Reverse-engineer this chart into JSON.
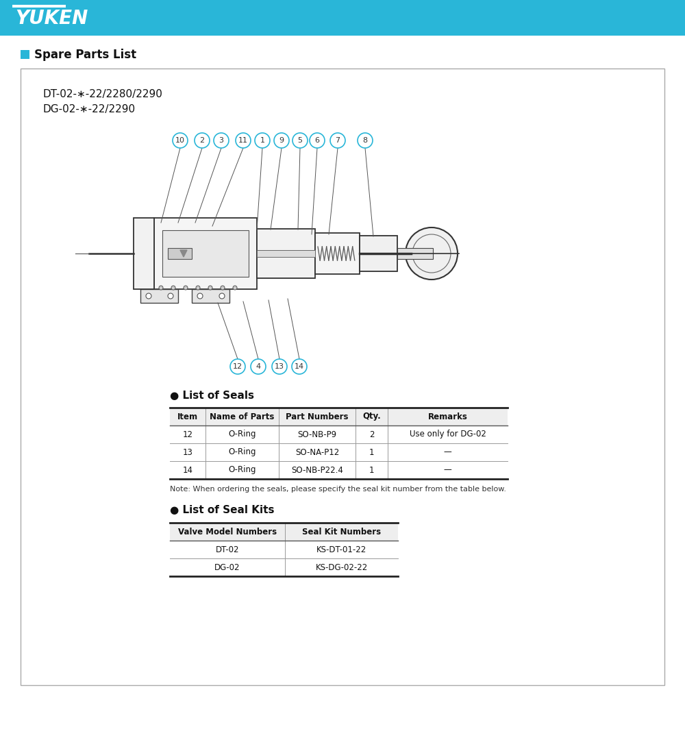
{
  "bg_color": "#ffffff",
  "header_color": "#29b6d8",
  "header_text": "YUKEN",
  "header_text_color": "#ffffff",
  "section_title": "Spare Parts List",
  "section_indicator_color": "#29b6d8",
  "model_lines": [
    "DT-02-∗-22/2280/2290",
    "DG-02-∗-22/2290"
  ],
  "list_of_seals_title": "● List of Seals",
  "seals_headers": [
    "Item",
    "Name of Parts",
    "Part Numbers",
    "Qty.",
    "Remarks"
  ],
  "seals_data": [
    [
      "12",
      "O-Ring",
      "SO-NB-P9",
      "2",
      "Use only for DG-02"
    ],
    [
      "13",
      "O-Ring",
      "SO-NA-P12",
      "1",
      "—"
    ],
    [
      "14",
      "O-Ring",
      "SO-NB-P22.4",
      "1",
      "—"
    ]
  ],
  "note_text": "Note: When ordering the seals, please specify the seal kit number from the table below.",
  "list_of_kits_title": "● List of Seal Kits",
  "kits_headers": [
    "Valve Model Numbers",
    "Seal Kit Numbers"
  ],
  "kits_data": [
    [
      "DT-02",
      "KS-DT-01-22"
    ],
    [
      "DG-02",
      "KS-DG-02-22"
    ]
  ],
  "part_numbers_top": [
    "10",
    "2",
    "3",
    "11",
    "1",
    "9",
    "5",
    "6",
    "7",
    "8"
  ],
  "part_numbers_bottom": [
    "12",
    "4",
    "13",
    "14"
  ],
  "bubble_border_color": "#29b6d8",
  "table_border_color": "#333333",
  "outer_border_color": "#aaaaaa"
}
